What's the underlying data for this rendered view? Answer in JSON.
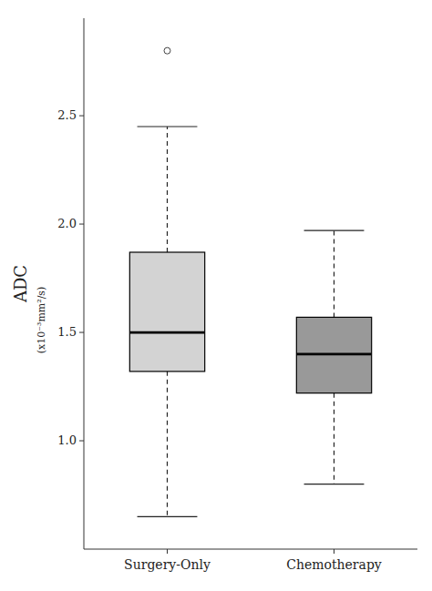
{
  "chart_data": {
    "type": "box",
    "ylabel": "ADC",
    "ylabel_sub": "(x10⁻³mm²/s)",
    "categories": [
      "Surgery-Only",
      "Chemotherapy"
    ],
    "boxes": [
      {
        "q1": 1.32,
        "median": 1.5,
        "q3": 1.87,
        "whisker_low": 0.65,
        "whisker_high": 2.45,
        "outliers": [
          2.8
        ],
        "color": "#d3d3d3"
      },
      {
        "q1": 1.22,
        "median": 1.4,
        "q3": 1.57,
        "whisker_low": 0.8,
        "whisker_high": 1.97,
        "outliers": [],
        "color": "#999999"
      }
    ],
    "ylim": [
      0.5,
      2.95
    ],
    "yticks": [
      {
        "value": 1.0,
        "label": "1.0"
      },
      1.5,
      {
        "value": 2.0,
        "label": "2.0"
      },
      2.5
    ]
  }
}
